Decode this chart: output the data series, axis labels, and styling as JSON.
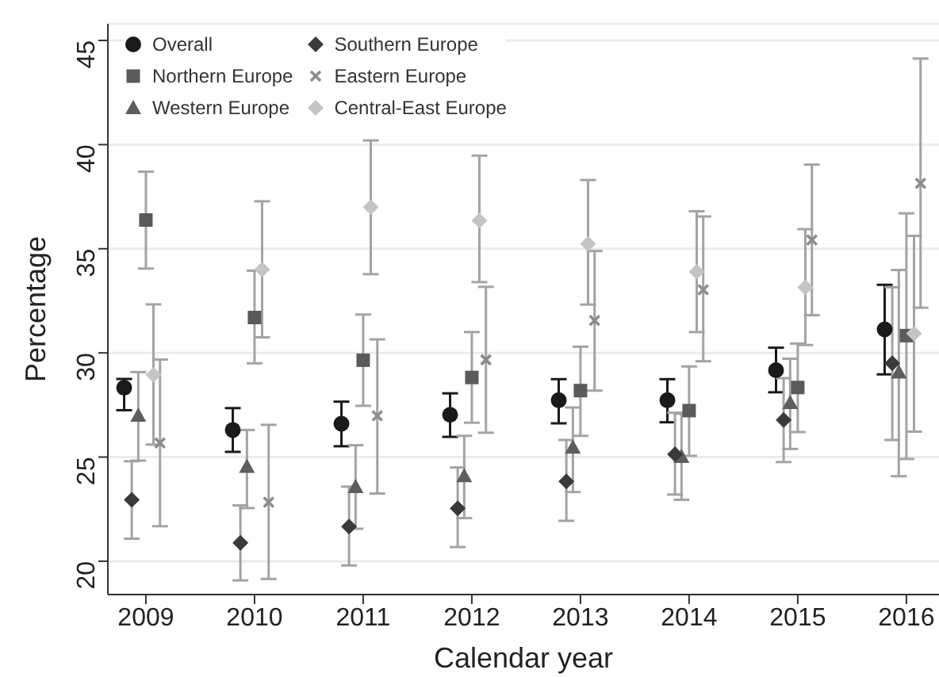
{
  "chart_data": {
    "type": "scatter",
    "xlabel": "Calendar year",
    "ylabel": "Percentage",
    "xlim": [
      2008.65,
      2016.3
    ],
    "ylim": [
      18.4,
      45.8
    ],
    "xticks": [
      2009,
      2010,
      2011,
      2012,
      2013,
      2014,
      2015,
      2016
    ],
    "yticks": [
      20,
      25,
      30,
      35,
      40,
      45
    ],
    "grid": "y",
    "legend": "top left",
    "series": [
      {
        "name": "Overall",
        "color": "#1a1a1a",
        "marker": "circle",
        "x": [
          2008.8,
          2009.8,
          2010.8,
          2011.8,
          2012.8,
          2013.8,
          2014.8,
          2015.8
        ],
        "values": [
          28.33,
          26.3,
          26.6,
          27.03,
          27.73,
          27.73,
          29.17,
          31.13
        ],
        "errors": [
          [
            27.25,
            28.75
          ],
          [
            25.25,
            27.35
          ],
          [
            25.52,
            27.66
          ],
          [
            25.97,
            28.06
          ],
          [
            26.62,
            28.74
          ],
          [
            26.67,
            28.74
          ],
          [
            28.11,
            30.25
          ],
          [
            28.97,
            33.27
          ]
        ]
      },
      {
        "name": "Northern Europe",
        "color": "#5a5a5a",
        "marker": "square",
        "x": [
          2009,
          2010,
          2011,
          2012,
          2013,
          2014,
          2015,
          2016
        ],
        "values": [
          36.38,
          31.7,
          29.65,
          28.82,
          28.19,
          27.23,
          28.34,
          30.83
        ],
        "errors": [
          [
            34.05,
            38.7
          ],
          [
            29.5,
            33.95
          ],
          [
            27.46,
            31.84
          ],
          [
            26.65,
            31.0
          ],
          [
            26.02,
            30.3
          ],
          [
            25.06,
            29.35
          ],
          [
            26.2,
            30.45
          ],
          [
            24.91,
            36.7
          ]
        ]
      },
      {
        "name": "Western Europe",
        "color": "#5e5e5e",
        "marker": "triangle",
        "x": [
          2008.93,
          2009.93,
          2010.93,
          2011.93,
          2012.93,
          2013.93,
          2014.93,
          2015.93
        ],
        "values": [
          27.0,
          24.55,
          23.58,
          24.1,
          25.47,
          25.02,
          27.61,
          29.07
        ],
        "errors": [
          [
            24.83,
            29.08
          ],
          [
            22.55,
            26.3
          ],
          [
            21.56,
            25.57
          ],
          [
            22.07,
            26.02
          ],
          [
            23.32,
            27.38
          ],
          [
            22.95,
            27.08
          ],
          [
            25.39,
            29.72
          ],
          [
            24.08,
            33.98
          ]
        ]
      },
      {
        "name": "Southern Europe",
        "color": "#3a3a3a",
        "marker": "diamond",
        "x": [
          2008.87,
          2009.87,
          2010.87,
          2011.87,
          2012.87,
          2013.87,
          2014.87,
          2015.87
        ],
        "values": [
          22.95,
          20.88,
          21.66,
          22.54,
          23.83,
          25.14,
          26.78,
          29.5
        ],
        "errors": [
          [
            21.08,
            24.8
          ],
          [
            19.08,
            22.68
          ],
          [
            19.8,
            23.58
          ],
          [
            20.68,
            24.5
          ],
          [
            21.94,
            25.82
          ],
          [
            23.2,
            27.13
          ],
          [
            24.76,
            28.79
          ],
          [
            25.82,
            33.15
          ]
        ]
      },
      {
        "name": "Eastern Europe",
        "color": "#8c8c8c",
        "marker": "cross",
        "x": [
          2009.13,
          2010.13,
          2011.13,
          2012.13,
          2013.13,
          2014.13,
          2015.13,
          2016.13
        ],
        "values": [
          25.68,
          22.83,
          26.98,
          29.67,
          31.56,
          33.03,
          35.42,
          38.14
        ],
        "errors": [
          [
            21.68,
            29.68
          ],
          [
            19.15,
            26.55
          ],
          [
            23.25,
            30.65
          ],
          [
            26.17,
            33.17
          ],
          [
            28.19,
            34.89
          ],
          [
            29.6,
            36.55
          ],
          [
            31.81,
            39.04
          ],
          [
            32.17,
            44.13
          ]
        ]
      },
      {
        "name": "Central-East Europe",
        "color": "#c4c4c4",
        "marker": "diamond",
        "x": [
          2009.07,
          2010.07,
          2011.07,
          2012.07,
          2013.07,
          2014.07,
          2015.07,
          2016.07
        ],
        "values": [
          28.95,
          34.0,
          37.0,
          36.35,
          35.24,
          33.9,
          33.15,
          30.93
        ],
        "errors": [
          [
            25.6,
            32.33
          ],
          [
            30.75,
            37.28
          ],
          [
            33.78,
            40.2
          ],
          [
            33.4,
            39.47
          ],
          [
            32.32,
            38.3
          ],
          [
            31.0,
            36.8
          ],
          [
            30.38,
            35.94
          ],
          [
            26.22,
            35.62
          ]
        ]
      }
    ]
  }
}
